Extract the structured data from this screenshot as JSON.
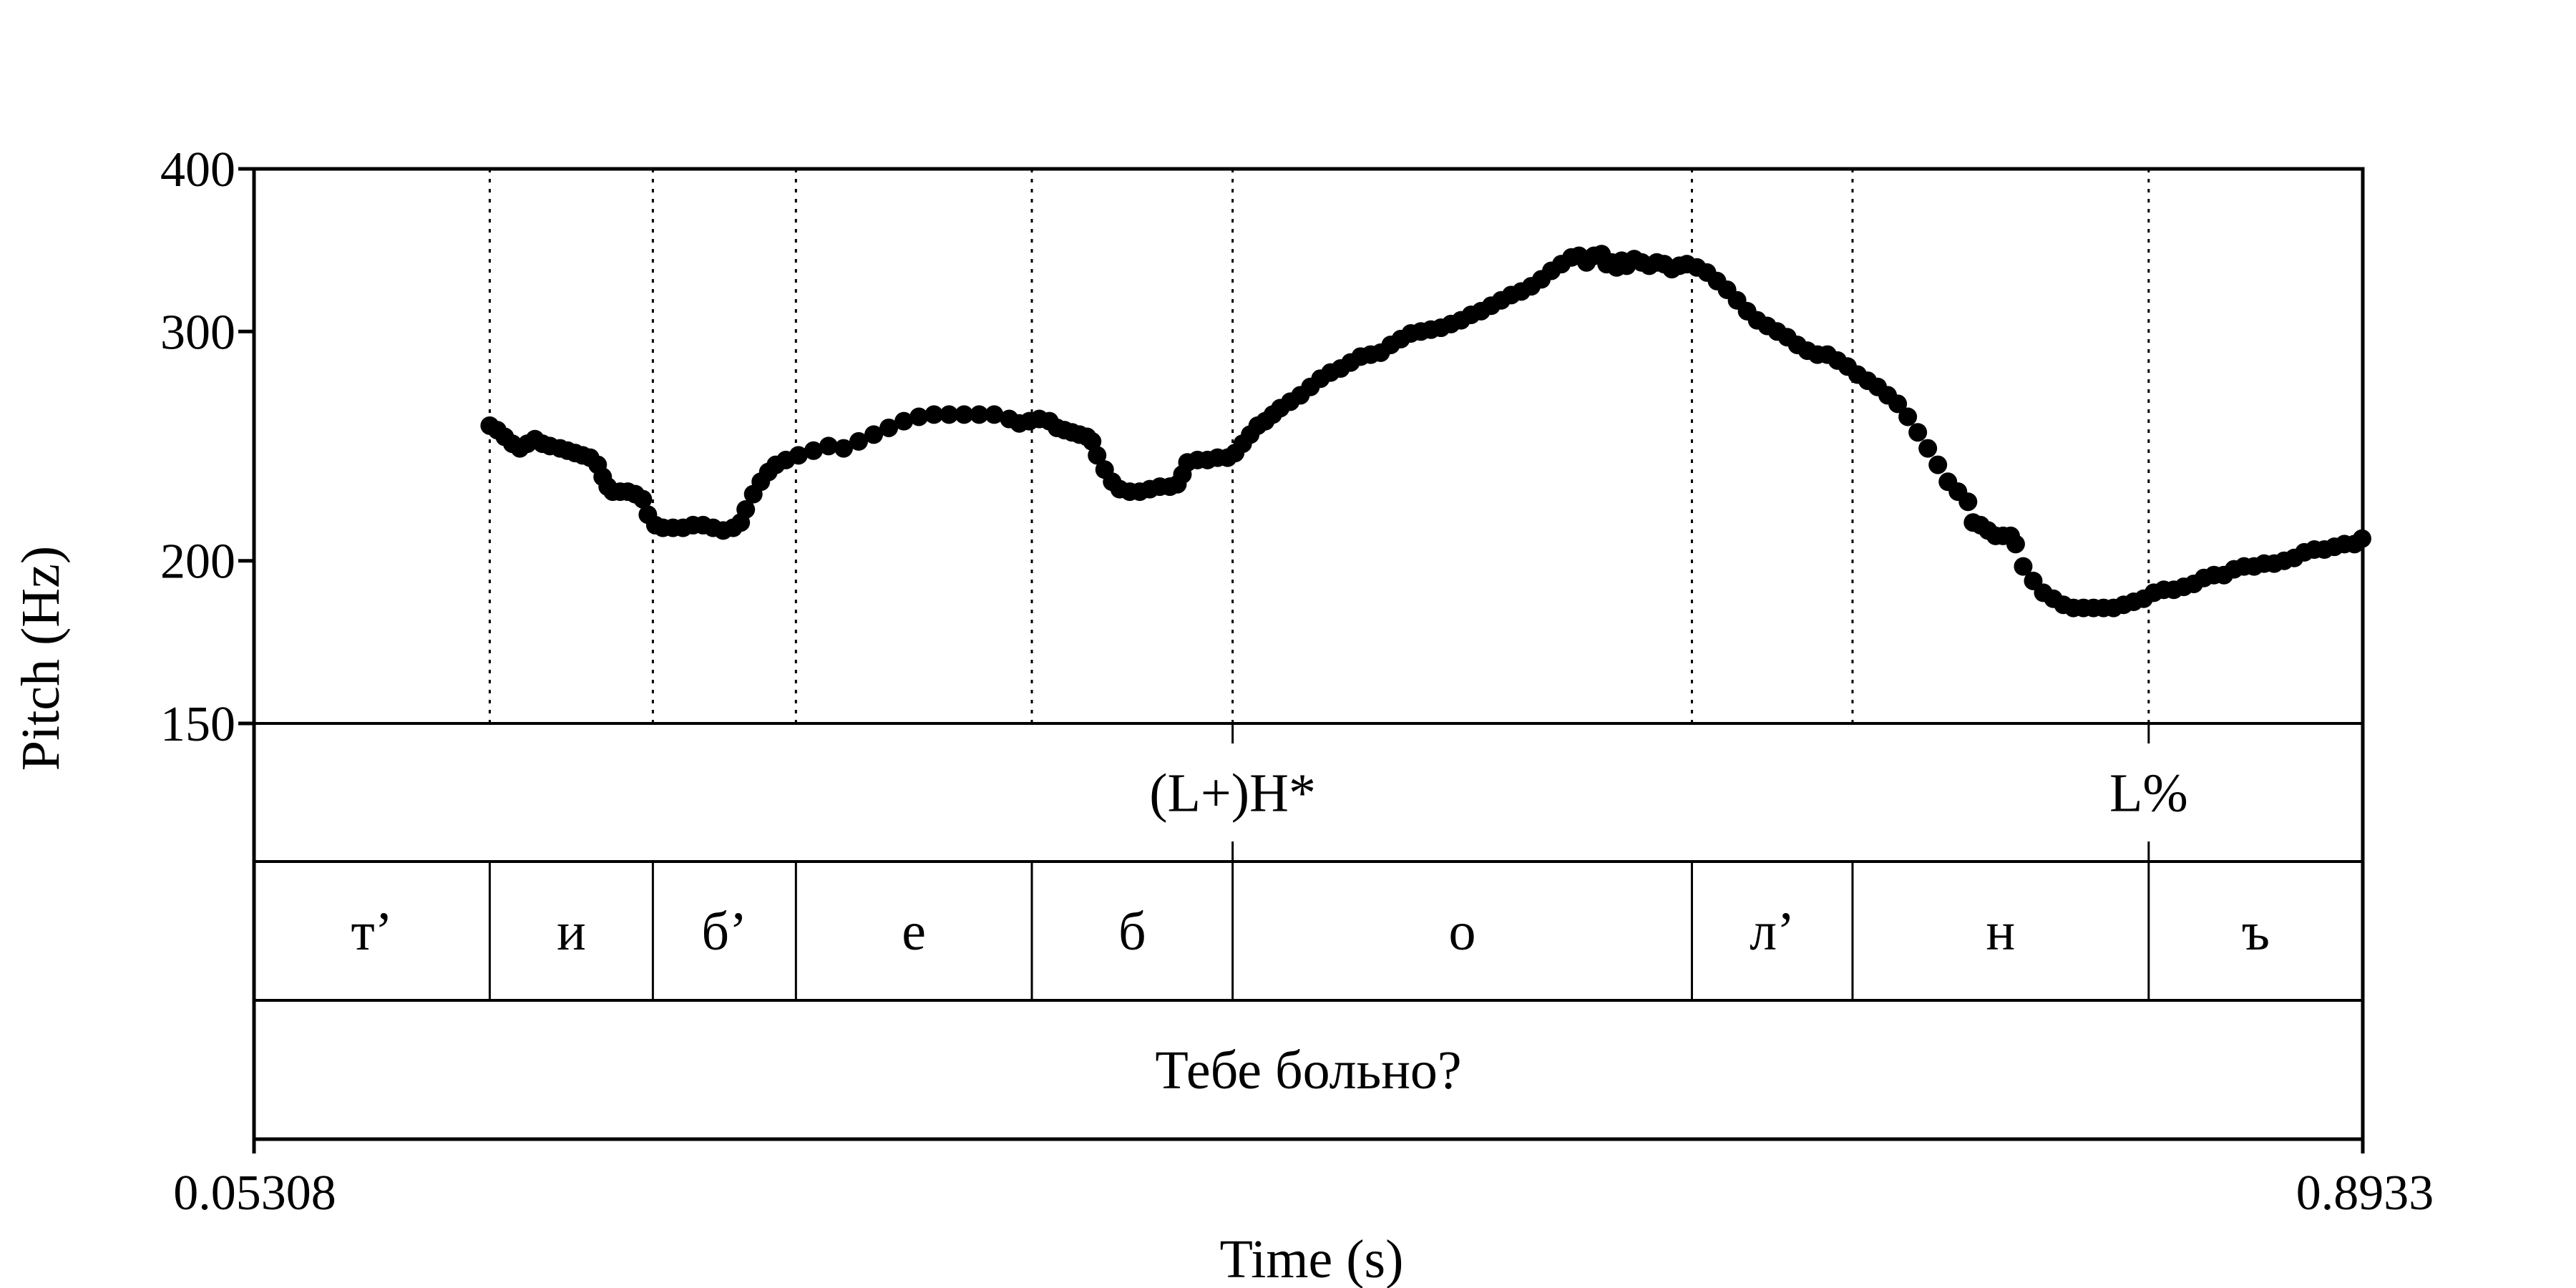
{
  "chart_data": {
    "type": "scatter",
    "title": "",
    "xlabel": "Time (s)",
    "ylabel": "Pitch (Hz)",
    "xlim": [
      0.05308,
      0.8933
    ],
    "ylim": [
      150,
      400
    ],
    "y_scale": "log",
    "x_tick_labels": [
      "0.05308",
      "0.8933"
    ],
    "y_ticks": [
      150,
      200,
      300,
      400
    ],
    "y_tick_labels": [
      "150",
      "200",
      "300",
      "400"
    ],
    "boundaries": [
      0.147,
      0.212,
      0.269,
      0.363,
      0.443,
      0.626,
      0.69,
      0.808
    ],
    "series": [
      {
        "points": [
          [
            0.147,
            254
          ],
          [
            0.15,
            252
          ],
          [
            0.153,
            249
          ],
          [
            0.156,
            246
          ],
          [
            0.159,
            244
          ],
          [
            0.162,
            246
          ],
          [
            0.165,
            248
          ],
          [
            0.168,
            246
          ],
          [
            0.171,
            245
          ],
          [
            0.175,
            244
          ],
          [
            0.178,
            243
          ],
          [
            0.181,
            242
          ],
          [
            0.184,
            241
          ],
          [
            0.187,
            240
          ],
          [
            0.19,
            237
          ],
          [
            0.192,
            232
          ],
          [
            0.194,
            228
          ],
          [
            0.196,
            226
          ],
          [
            0.199,
            226
          ],
          [
            0.202,
            226
          ],
          [
            0.205,
            225
          ],
          [
            0.208,
            223
          ],
          [
            0.21,
            217
          ],
          [
            0.213,
            213
          ],
          [
            0.216,
            212
          ],
          [
            0.22,
            212
          ],
          [
            0.224,
            212
          ],
          [
            0.228,
            213
          ],
          [
            0.232,
            213
          ],
          [
            0.236,
            212
          ],
          [
            0.24,
            211
          ],
          [
            0.244,
            212
          ],
          [
            0.247,
            214
          ],
          [
            0.249,
            219
          ],
          [
            0.252,
            225
          ],
          [
            0.255,
            230
          ],
          [
            0.258,
            234
          ],
          [
            0.261,
            237
          ],
          [
            0.265,
            239
          ],
          [
            0.27,
            241
          ],
          [
            0.276,
            243
          ],
          [
            0.282,
            245
          ],
          [
            0.288,
            244
          ],
          [
            0.294,
            247
          ],
          [
            0.3,
            250
          ],
          [
            0.306,
            253
          ],
          [
            0.312,
            256
          ],
          [
            0.318,
            258
          ],
          [
            0.324,
            259
          ],
          [
            0.33,
            259
          ],
          [
            0.336,
            259
          ],
          [
            0.342,
            259
          ],
          [
            0.348,
            259
          ],
          [
            0.354,
            257
          ],
          [
            0.358,
            255
          ],
          [
            0.362,
            256
          ],
          [
            0.366,
            257
          ],
          [
            0.37,
            256
          ],
          [
            0.373,
            253
          ],
          [
            0.376,
            252
          ],
          [
            0.379,
            251
          ],
          [
            0.382,
            250
          ],
          [
            0.385,
            249
          ],
          [
            0.387,
            247
          ],
          [
            0.389,
            241
          ],
          [
            0.392,
            235
          ],
          [
            0.395,
            230
          ],
          [
            0.398,
            227
          ],
          [
            0.402,
            226
          ],
          [
            0.406,
            226
          ],
          [
            0.41,
            227
          ],
          [
            0.414,
            228
          ],
          [
            0.418,
            228
          ],
          [
            0.421,
            229
          ],
          [
            0.423,
            233
          ],
          [
            0.425,
            238
          ],
          [
            0.429,
            239
          ],
          [
            0.433,
            239
          ],
          [
            0.437,
            240
          ],
          [
            0.441,
            240
          ],
          [
            0.444,
            242
          ],
          [
            0.447,
            246
          ],
          [
            0.45,
            250
          ],
          [
            0.453,
            254
          ],
          [
            0.456,
            256
          ],
          [
            0.459,
            259
          ],
          [
            0.462,
            262
          ],
          [
            0.466,
            265
          ],
          [
            0.47,
            268
          ],
          [
            0.474,
            272
          ],
          [
            0.478,
            276
          ],
          [
            0.482,
            279
          ],
          [
            0.486,
            281
          ],
          [
            0.49,
            284
          ],
          [
            0.494,
            287
          ],
          [
            0.498,
            288
          ],
          [
            0.502,
            289
          ],
          [
            0.506,
            293
          ],
          [
            0.51,
            296
          ],
          [
            0.514,
            299
          ],
          [
            0.518,
            300
          ],
          [
            0.522,
            301
          ],
          [
            0.526,
            302
          ],
          [
            0.53,
            304
          ],
          [
            0.534,
            306
          ],
          [
            0.538,
            309
          ],
          [
            0.542,
            311
          ],
          [
            0.546,
            314
          ],
          [
            0.55,
            317
          ],
          [
            0.554,
            320
          ],
          [
            0.558,
            322
          ],
          [
            0.562,
            325
          ],
          [
            0.566,
            329
          ],
          [
            0.57,
            334
          ],
          [
            0.574,
            338
          ],
          [
            0.578,
            342
          ],
          [
            0.581,
            343
          ],
          [
            0.584,
            339
          ],
          [
            0.587,
            343
          ],
          [
            0.59,
            344
          ],
          [
            0.592,
            338
          ],
          [
            0.594,
            339
          ],
          [
            0.596,
            336
          ],
          [
            0.598,
            340
          ],
          [
            0.6,
            337
          ],
          [
            0.603,
            341
          ],
          [
            0.606,
            339
          ],
          [
            0.609,
            337
          ],
          [
            0.612,
            339
          ],
          [
            0.615,
            338
          ],
          [
            0.618,
            335
          ],
          [
            0.621,
            337
          ],
          [
            0.624,
            338
          ],
          [
            0.628,
            336
          ],
          [
            0.632,
            333
          ],
          [
            0.636,
            328
          ],
          [
            0.64,
            323
          ],
          [
            0.644,
            317
          ],
          [
            0.648,
            311
          ],
          [
            0.652,
            306
          ],
          [
            0.656,
            303
          ],
          [
            0.66,
            300
          ],
          [
            0.664,
            297
          ],
          [
            0.668,
            293
          ],
          [
            0.672,
            290
          ],
          [
            0.676,
            288
          ],
          [
            0.68,
            288
          ],
          [
            0.684,
            285
          ],
          [
            0.688,
            282
          ],
          [
            0.692,
            278
          ],
          [
            0.696,
            275
          ],
          [
            0.7,
            272
          ],
          [
            0.704,
            268
          ],
          [
            0.708,
            264
          ],
          [
            0.712,
            258
          ],
          [
            0.716,
            251
          ],
          [
            0.72,
            244
          ],
          [
            0.724,
            237
          ],
          [
            0.728,
            230
          ],
          [
            0.732,
            226
          ],
          [
            0.736,
            222
          ],
          [
            0.738,
            214
          ],
          [
            0.741,
            213
          ],
          [
            0.744,
            211
          ],
          [
            0.747,
            209
          ],
          [
            0.75,
            209
          ],
          [
            0.753,
            209
          ],
          [
            0.755,
            206
          ],
          [
            0.758,
            198
          ],
          [
            0.762,
            193
          ],
          [
            0.766,
            189
          ],
          [
            0.77,
            187
          ],
          [
            0.774,
            185
          ],
          [
            0.778,
            184
          ],
          [
            0.782,
            184
          ],
          [
            0.786,
            184
          ],
          [
            0.79,
            184
          ],
          [
            0.794,
            184
          ],
          [
            0.798,
            185
          ],
          [
            0.802,
            186
          ],
          [
            0.806,
            187
          ],
          [
            0.81,
            189
          ],
          [
            0.814,
            190
          ],
          [
            0.818,
            190
          ],
          [
            0.822,
            191
          ],
          [
            0.826,
            192
          ],
          [
            0.83,
            194
          ],
          [
            0.834,
            195
          ],
          [
            0.838,
            195
          ],
          [
            0.842,
            197
          ],
          [
            0.846,
            198
          ],
          [
            0.85,
            198
          ],
          [
            0.854,
            199
          ],
          [
            0.858,
            199
          ],
          [
            0.862,
            200
          ],
          [
            0.866,
            201
          ],
          [
            0.87,
            203
          ],
          [
            0.874,
            204
          ],
          [
            0.878,
            204
          ],
          [
            0.882,
            205
          ],
          [
            0.886,
            206
          ],
          [
            0.89,
            206
          ],
          [
            0.893,
            208
          ]
        ]
      }
    ],
    "tiers": [
      {
        "name": "tones",
        "intervals": [
          {
            "label": "(L+)H*",
            "start": 0.05308,
            "end": 0.8933,
            "at": 0.443
          },
          {
            "label": "L%",
            "start": 0.05308,
            "end": 0.8933,
            "at": 0.808
          }
        ]
      },
      {
        "name": "phones",
        "intervals": [
          {
            "label": "т’",
            "start": 0.05308,
            "end": 0.147
          },
          {
            "label": "и",
            "start": 0.147,
            "end": 0.212
          },
          {
            "label": "б’",
            "start": 0.212,
            "end": 0.269
          },
          {
            "label": "е",
            "start": 0.269,
            "end": 0.363
          },
          {
            "label": "б",
            "start": 0.363,
            "end": 0.443
          },
          {
            "label": "о",
            "start": 0.443,
            "end": 0.626
          },
          {
            "label": "л’",
            "start": 0.626,
            "end": 0.69
          },
          {
            "label": "н",
            "start": 0.69,
            "end": 0.808
          },
          {
            "label": "ъ",
            "start": 0.808,
            "end": 0.8933
          }
        ]
      },
      {
        "name": "sentence",
        "intervals": [
          {
            "label": "Тебе больно?",
            "start": 0.05308,
            "end": 0.8933
          }
        ]
      }
    ]
  }
}
